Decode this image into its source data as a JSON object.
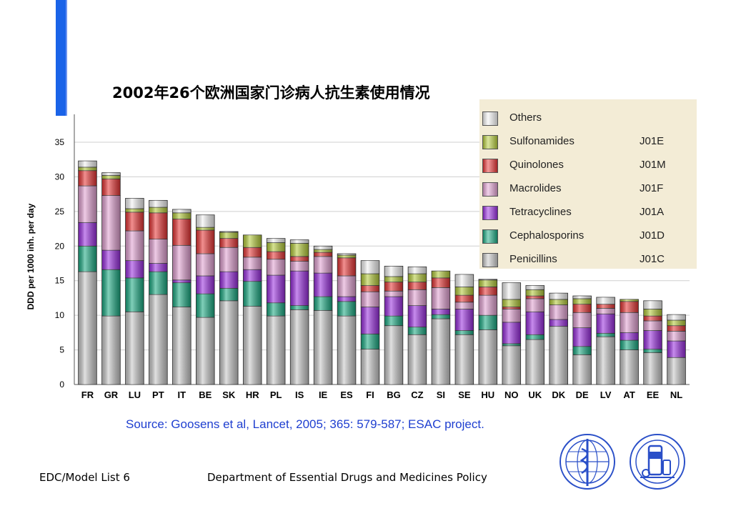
{
  "title": "2002年26个欧洲国家门诊病人抗生素使用情况",
  "source": "Source: Goosens et al, Lancet, 2005; 365: 579-587; ESAC project.",
  "footer": {
    "left": "EDC/Model List 6",
    "center": "Department of Essential Drugs and Medicines Policy"
  },
  "logos": [
    "who-emblem-icon",
    "pharmacy-emblem-icon"
  ],
  "chart_data": {
    "type": "bar",
    "stacked": true,
    "ylabel": "DDD per 1000 inh. per day",
    "ylim": [
      0,
      35
    ],
    "yticks": [
      0,
      5,
      10,
      15,
      20,
      25,
      30,
      35
    ],
    "grid": true,
    "legend_position": "top-right",
    "categories": [
      "FR",
      "GR",
      "LU",
      "PT",
      "IT",
      "BE",
      "SK",
      "HR",
      "PL",
      "IS",
      "IE",
      "ES",
      "FI",
      "BG",
      "CZ",
      "SI",
      "SE",
      "HU",
      "NO",
      "UK",
      "DK",
      "DE",
      "LV",
      "AT",
      "EE",
      "NL"
    ],
    "series": [
      {
        "name": "Penicillins",
        "code": "J01C",
        "color": "#c8c8c8",
        "values": [
          16.3,
          9.9,
          10.5,
          13.0,
          11.2,
          9.7,
          12.1,
          11.3,
          9.9,
          10.8,
          10.7,
          9.9,
          5.1,
          8.5,
          7.2,
          9.5,
          7.2,
          7.9,
          5.6,
          6.5,
          8.4,
          4.3,
          6.9,
          5.0,
          4.6,
          3.9
        ]
      },
      {
        "name": "Cephalosporins",
        "code": "J01D",
        "color": "#1aaa82",
        "values": [
          3.7,
          6.7,
          4.9,
          3.3,
          3.5,
          3.4,
          1.8,
          3.6,
          1.9,
          0.6,
          2.0,
          2.1,
          2.2,
          1.4,
          1.1,
          0.6,
          0.6,
          2.1,
          0.3,
          0.7,
          0.0,
          1.2,
          0.5,
          1.4,
          0.5,
          0.0
        ]
      },
      {
        "name": "Tetracyclines",
        "code": "J01A",
        "color": "#9a2ee0",
        "values": [
          3.4,
          2.8,
          2.5,
          1.2,
          0.4,
          2.6,
          2.4,
          1.7,
          4.0,
          5.0,
          3.4,
          0.7,
          3.9,
          2.8,
          3.1,
          0.8,
          3.1,
          0.0,
          3.1,
          3.3,
          1.0,
          2.7,
          2.8,
          1.1,
          2.7,
          2.4
        ]
      },
      {
        "name": "Macrolides",
        "code": "J01F",
        "color": "#e2a1d2",
        "values": [
          5.3,
          7.9,
          4.3,
          3.5,
          5.0,
          3.2,
          3.5,
          1.8,
          2.3,
          1.4,
          2.4,
          3.0,
          2.2,
          0.8,
          2.3,
          3.1,
          1.0,
          2.9,
          1.9,
          1.9,
          2.1,
          2.2,
          0.8,
          2.9,
          1.4,
          1.4
        ]
      },
      {
        "name": "Quinolones",
        "code": "J01M",
        "color": "#e83535",
        "values": [
          2.2,
          2.4,
          2.7,
          3.8,
          3.8,
          3.4,
          1.3,
          1.4,
          1.1,
          0.7,
          0.6,
          2.6,
          0.9,
          1.3,
          1.1,
          1.4,
          1.0,
          1.2,
          0.3,
          0.4,
          0.0,
          1.2,
          0.6,
          1.6,
          0.7,
          0.8
        ]
      },
      {
        "name": "Sulfonamides",
        "code": "J01E",
        "color": "#b5cc3a",
        "values": [
          0.5,
          0.5,
          0.5,
          0.8,
          0.9,
          0.4,
          0.9,
          1.8,
          1.3,
          1.9,
          0.4,
          0.4,
          1.7,
          0.8,
          1.2,
          1.0,
          1.2,
          1.0,
          1.1,
          0.9,
          0.8,
          0.8,
          0.0,
          0.3,
          1.0,
          0.8
        ]
      },
      {
        "name": "Others",
        "code": "",
        "color": "#f4f4f4",
        "values": [
          0.9,
          0.4,
          1.5,
          1.0,
          0.5,
          1.8,
          0.1,
          0.0,
          0.6,
          0.5,
          0.5,
          0.2,
          1.9,
          1.5,
          1.0,
          0.0,
          1.8,
          0.1,
          2.4,
          0.6,
          0.9,
          0.4,
          1.0,
          0.0,
          1.2,
          0.8
        ]
      }
    ],
    "legend_order": [
      "Others",
      "Sulfonamides",
      "Quinolones",
      "Macrolides",
      "Tetracyclines",
      "Cephalosporins",
      "Penicillins"
    ]
  }
}
